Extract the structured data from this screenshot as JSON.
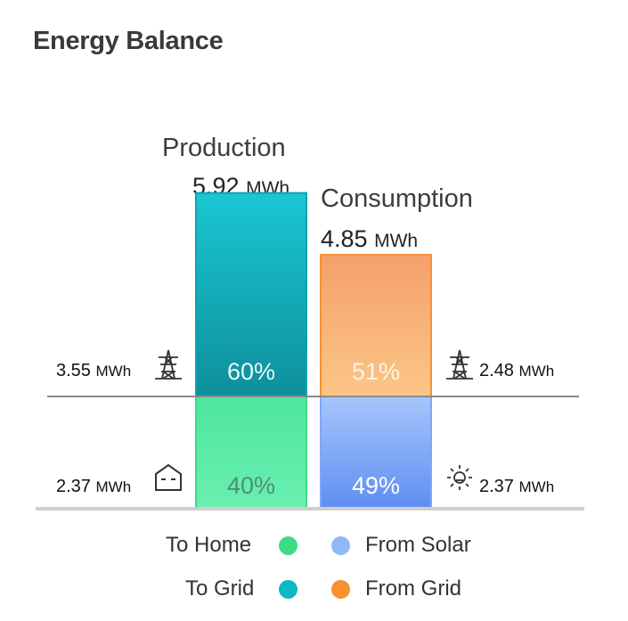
{
  "title": "Energy Balance",
  "production": {
    "label": "Production",
    "total": "5.92",
    "unit": "MWh"
  },
  "consumption": {
    "label": "Consumption",
    "total": "4.85",
    "unit": "MWh"
  },
  "left": {
    "grid_value": "3.55",
    "grid_unit": "MWh",
    "grid_icon": "transmission-tower-icon",
    "home_value": "2.37",
    "home_unit": "MWh",
    "home_icon": "home-icon"
  },
  "right": {
    "grid_value": "2.48",
    "grid_unit": "MWh",
    "grid_icon": "transmission-tower-icon",
    "solar_value": "2.37",
    "solar_unit": "MWh",
    "solar_icon": "sun-icon"
  },
  "legend": {
    "to_home": "To Home",
    "to_grid": "To Grid",
    "from_solar": "From Solar",
    "from_grid": "From Grid"
  },
  "colors": {
    "to_home": "#3ddc84",
    "to_grid": "#0fb7c4",
    "from_solar": "#8fb8f8",
    "from_grid": "#f7922e"
  },
  "chart_data": {
    "type": "bar",
    "stacked": true,
    "categories": [
      "Production",
      "Consumption"
    ],
    "series": [
      {
        "name": "To Grid",
        "values": [
          60,
          null
        ]
      },
      {
        "name": "To Home",
        "values": [
          40,
          null
        ]
      },
      {
        "name": "From Grid",
        "values": [
          null,
          51
        ]
      },
      {
        "name": "From Solar",
        "values": [
          null,
          49
        ]
      }
    ],
    "data_labels": {
      "production_top": "60%",
      "production_bottom": "40%",
      "consumption_top": "51%",
      "consumption_bottom": "49%"
    },
    "totals_mwh": [
      5.92,
      4.85
    ],
    "legend_position": "bottom"
  }
}
